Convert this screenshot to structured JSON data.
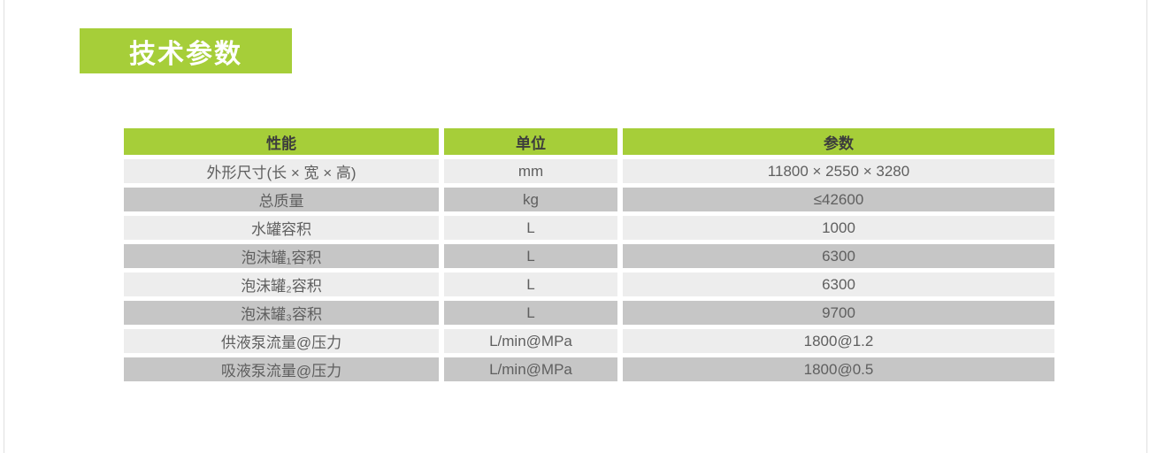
{
  "theme": {
    "accent": "#a6ce39",
    "badge-text": "#ffffff",
    "header-text": "#3c3c3c",
    "row-light": "#ededed",
    "row-dark": "#c6c6c6",
    "cell-text": "#5f5f5f",
    "page-border": "#e0e0e0",
    "page-bg": "#ffffff"
  },
  "section": {
    "title": "技术参数"
  },
  "table": {
    "headers": [
      "性能",
      "单位",
      "参数"
    ],
    "rows": [
      {
        "name": "外形尺寸(长 × 宽 × 高)",
        "unit": "mm",
        "value": "11800 × 2550 × 3280"
      },
      {
        "name": "总质量",
        "unit": "kg",
        "value": "≤42600"
      },
      {
        "name": "水罐容积",
        "unit": "L",
        "value": "1000"
      },
      {
        "name": "泡沫罐₁容积",
        "unit": "L",
        "value": "6300"
      },
      {
        "name": "泡沫罐₂容积",
        "unit": "L",
        "value": "6300"
      },
      {
        "name": "泡沫罐₃容积",
        "unit": "L",
        "value": "9700"
      },
      {
        "name": "供液泵流量@压力",
        "unit": "L/min@MPa",
        "value": "1800@1.2"
      },
      {
        "name": "吸液泵流量@压力",
        "unit": "L/min@MPa",
        "value": "1800@0.5"
      }
    ]
  }
}
